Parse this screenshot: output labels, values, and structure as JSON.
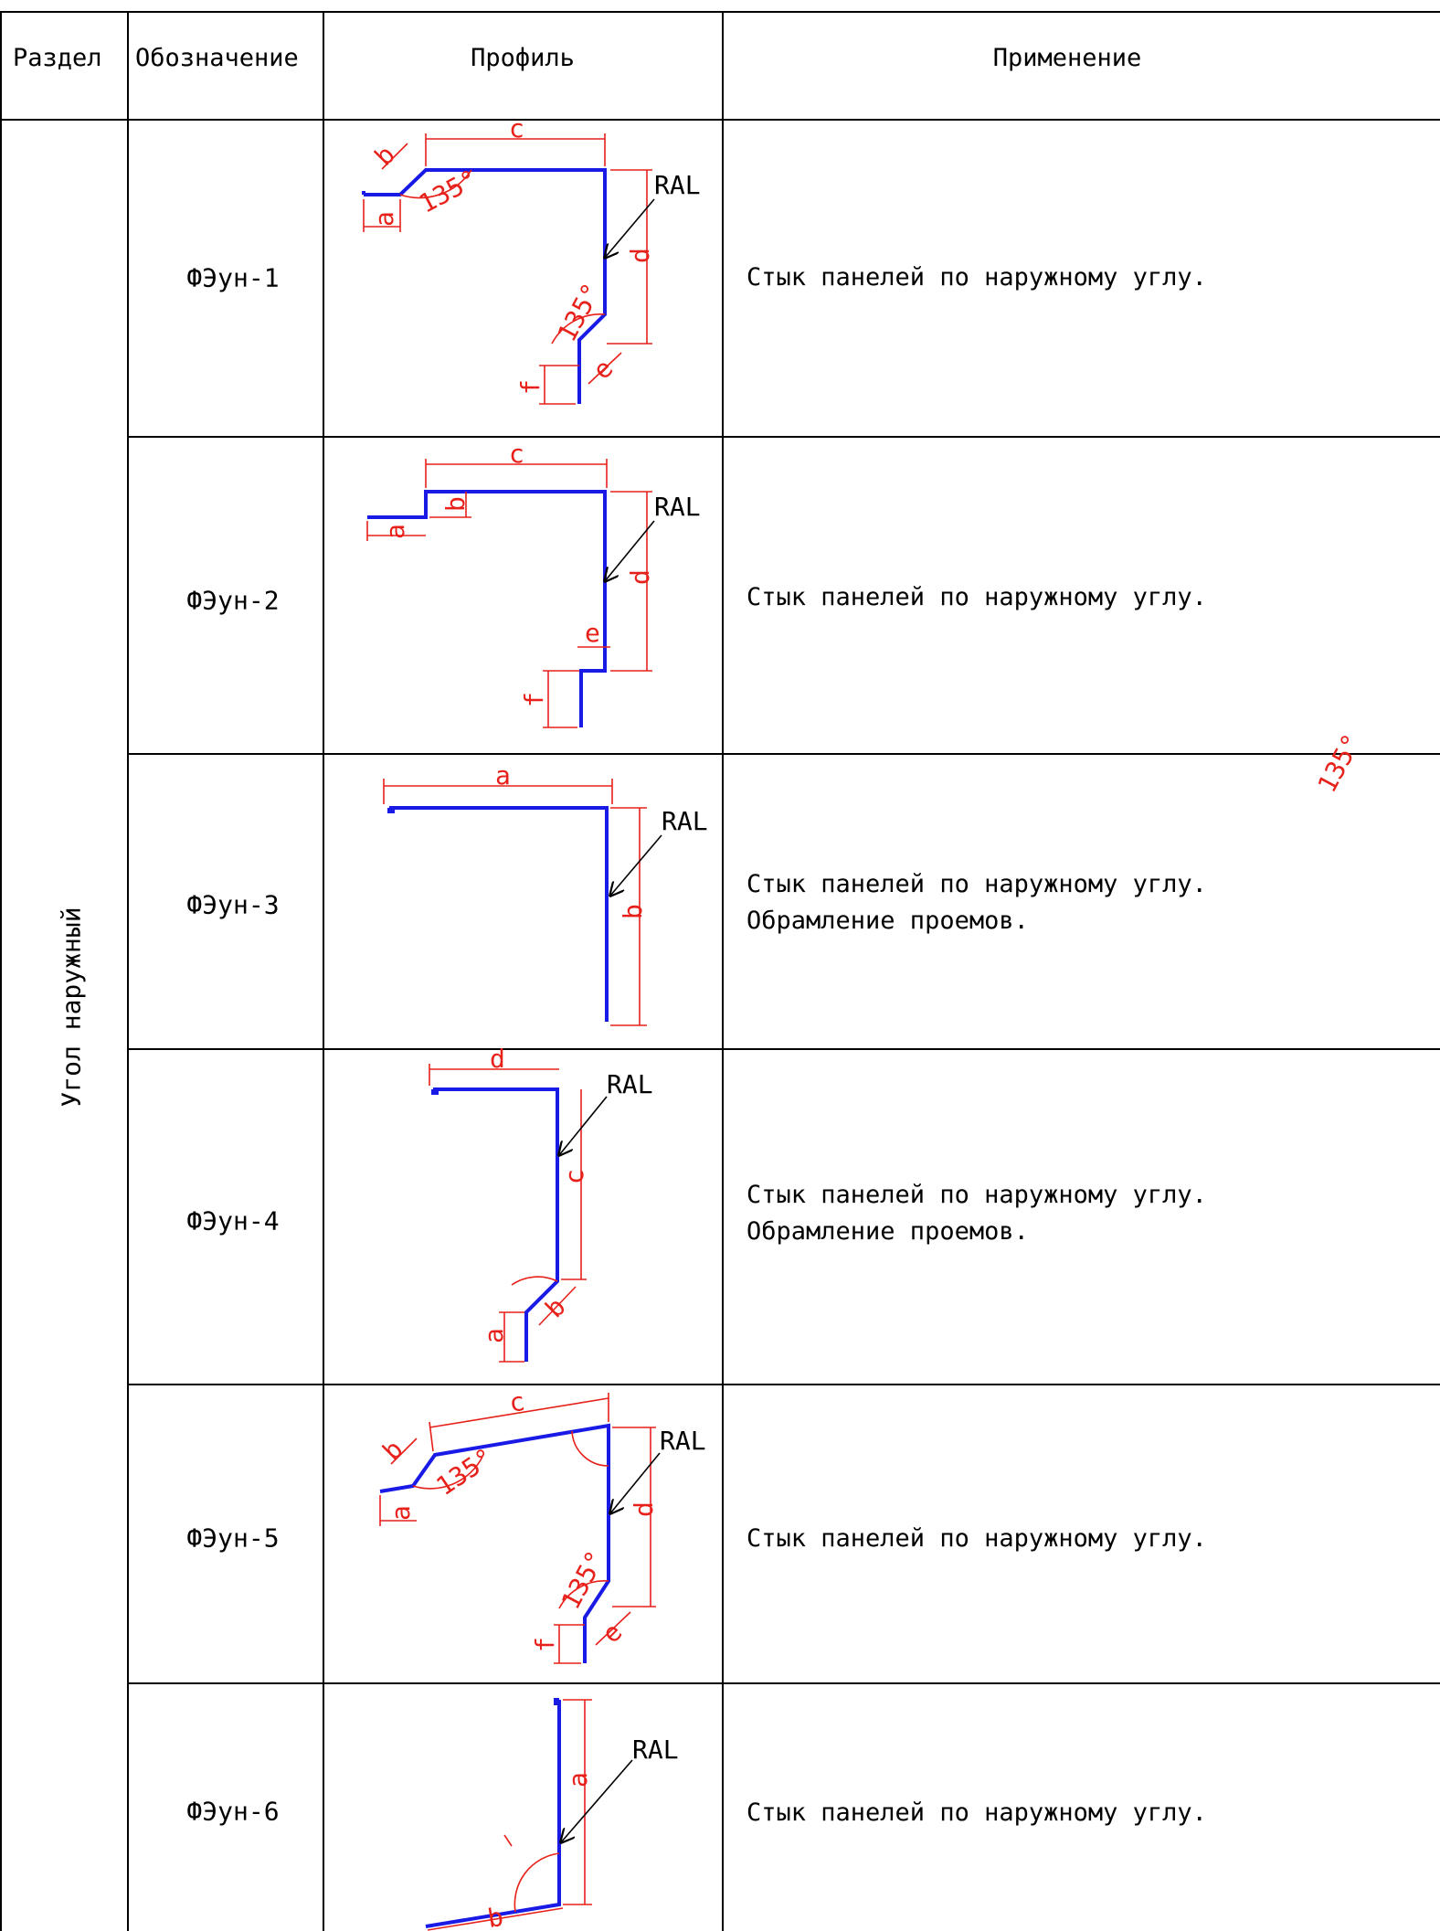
{
  "header": {
    "section": "Раздел",
    "designation": "Обозначение",
    "profile": "Профиль",
    "application": "Применение"
  },
  "section_label": "Угол наружный",
  "colors": {
    "profile_line": "#1a1ae6",
    "dimension_line": "#e8201a",
    "grid": "#000000"
  },
  "rows": [
    {
      "designation": "ФЭун-1",
      "application": [
        "Стык панелей по наружному углу."
      ],
      "labels": {
        "a": "a",
        "b": "b",
        "c": "c",
        "d": "d",
        "e": "e",
        "f": "f",
        "angle1": "135°",
        "angle2": "135°",
        "ral": "RAL"
      }
    },
    {
      "designation": "ФЭун-2",
      "application": [
        "Стык панелей по наружному углу."
      ],
      "labels": {
        "a": "a",
        "b": "b",
        "c": "c",
        "d": "d",
        "e": "e",
        "f": "f",
        "ral": "RAL"
      }
    },
    {
      "designation": "ФЭун-3",
      "application": [
        "Стык панелей по наружному углу.",
        "Обрамление проемов."
      ],
      "labels": {
        "a": "a",
        "b": "b",
        "ral": "RAL"
      }
    },
    {
      "designation": "ФЭун-4",
      "application": [
        "Стык панелей по наружному углу.",
        "Обрамление проемов."
      ],
      "labels": {
        "a": "a",
        "b": "b",
        "c": "c",
        "d": "d",
        "angle1": "135°",
        "ral": "RAL"
      }
    },
    {
      "designation": "ФЭун-5",
      "application": [
        "Стык панелей по наружному углу."
      ],
      "labels": {
        "a": "a",
        "b": "b",
        "c": "c",
        "d": "d",
        "e": "e",
        "f": "f",
        "angle1": "135°",
        "angle2": "135°",
        "ral": "RAL"
      }
    },
    {
      "designation": "ФЭун-6",
      "application": [
        "Стык панелей по наружному углу."
      ],
      "labels": {
        "a": "a",
        "b": "b",
        "ral": "RAL"
      }
    }
  ]
}
